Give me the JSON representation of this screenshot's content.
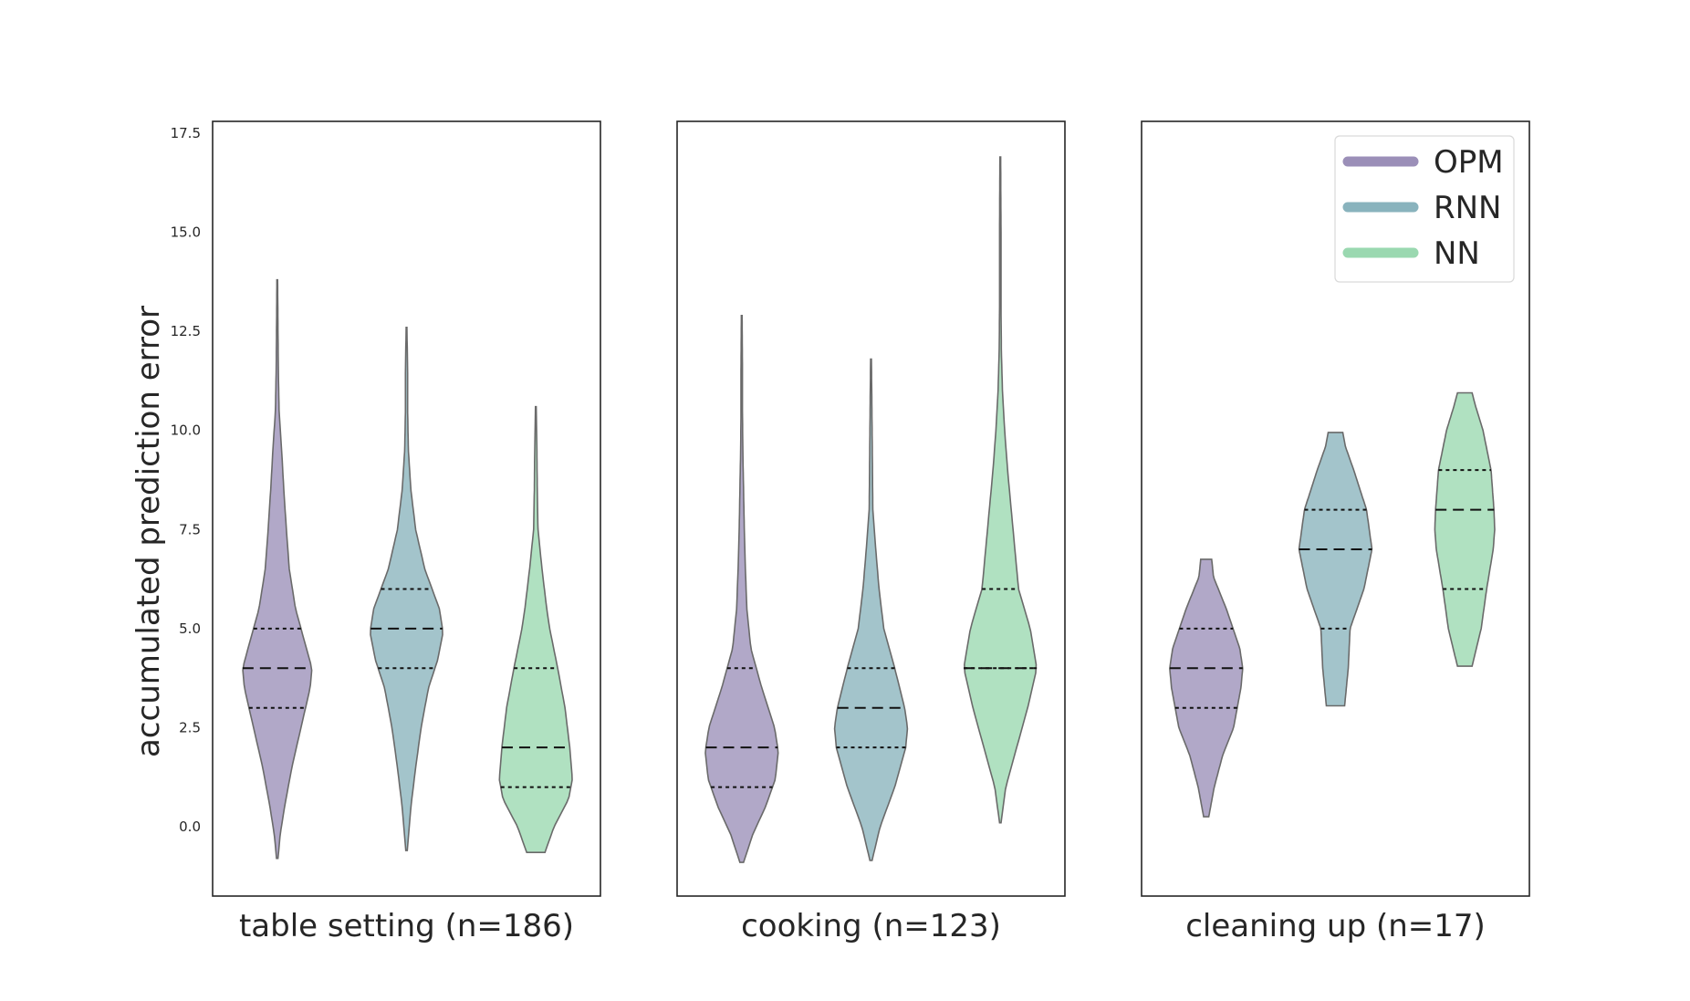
{
  "chart_data": {
    "type": "violin",
    "ylabel": "accumulated prediction error",
    "y_ticks": [
      0.0,
      2.5,
      5.0,
      7.5,
      10.0,
      12.5,
      15.0,
      17.5
    ],
    "y_tick_labels": [
      "0.0",
      "2.5",
      "5.0",
      "7.5",
      "10.0",
      "12.5",
      "15.0",
      "17.5"
    ],
    "ylim": [
      -1.75,
      17.8
    ],
    "shared_y": true,
    "legend_placement": "top-right of third panel",
    "series": [
      {
        "name": "OPM",
        "color": "#9b8fb8"
      },
      {
        "name": "RNN",
        "color": "#89b3bd"
      },
      {
        "name": "NN",
        "color": "#9ad8b0"
      }
    ],
    "panels": [
      {
        "title": "table setting (n=186)",
        "violins": [
          {
            "series": "OPM",
            "min": -0.8,
            "max": 13.8,
            "q1": 3.0,
            "median": 4.0,
            "q3": 5.0,
            "profile": [
              [
                -0.8,
                0.02
              ],
              [
                -0.2,
                0.08
              ],
              [
                0.5,
                0.2
              ],
              [
                1.5,
                0.4
              ],
              [
                2.5,
                0.65
              ],
              [
                3.5,
                0.9
              ],
              [
                4.0,
                0.95
              ],
              [
                4.5,
                0.8
              ],
              [
                5.5,
                0.5
              ],
              [
                6.5,
                0.33
              ],
              [
                7.5,
                0.25
              ],
              [
                8.5,
                0.18
              ],
              [
                9.5,
                0.12
              ],
              [
                10.5,
                0.05
              ],
              [
                11.5,
                0.03
              ],
              [
                12.5,
                0.02
              ],
              [
                13.8,
                0.01
              ]
            ]
          },
          {
            "series": "RNN",
            "min": -0.6,
            "max": 12.6,
            "q1": 4.0,
            "median": 5.0,
            "q3": 6.0,
            "profile": [
              [
                -0.6,
                0.02
              ],
              [
                0.5,
                0.12
              ],
              [
                1.5,
                0.25
              ],
              [
                2.5,
                0.4
              ],
              [
                3.5,
                0.6
              ],
              [
                4.2,
                0.85
              ],
              [
                4.9,
                1.0
              ],
              [
                5.5,
                0.9
              ],
              [
                6.0,
                0.7
              ],
              [
                6.5,
                0.5
              ],
              [
                7.5,
                0.25
              ],
              [
                8.5,
                0.12
              ],
              [
                9.5,
                0.05
              ],
              [
                10.5,
                0.03
              ],
              [
                11.5,
                0.03
              ],
              [
                12.6,
                0.01
              ]
            ]
          },
          {
            "series": "NN",
            "min": -0.65,
            "max": 10.6,
            "q1": 1.0,
            "median": 2.0,
            "q3": 4.0,
            "profile": [
              [
                -0.65,
                0.25
              ],
              [
                0.0,
                0.5
              ],
              [
                0.7,
                0.9
              ],
              [
                1.2,
                1.0
              ],
              [
                2.0,
                0.93
              ],
              [
                3.0,
                0.8
              ],
              [
                4.0,
                0.6
              ],
              [
                5.0,
                0.38
              ],
              [
                5.5,
                0.3
              ],
              [
                6.5,
                0.17
              ],
              [
                7.5,
                0.06
              ],
              [
                8.5,
                0.04
              ],
              [
                9.5,
                0.03
              ],
              [
                10.6,
                0.01
              ]
            ]
          }
        ]
      },
      {
        "title": "cooking (n=123)",
        "violins": [
          {
            "series": "OPM",
            "min": -0.9,
            "max": 12.9,
            "q1": 1.0,
            "median": 2.0,
            "q3": 4.0,
            "profile": [
              [
                -0.9,
                0.05
              ],
              [
                -0.2,
                0.3
              ],
              [
                0.5,
                0.65
              ],
              [
                1.2,
                0.92
              ],
              [
                1.9,
                1.0
              ],
              [
                2.5,
                0.9
              ],
              [
                3.5,
                0.55
              ],
              [
                4.5,
                0.25
              ],
              [
                5.5,
                0.14
              ],
              [
                6.5,
                0.1
              ],
              [
                7.5,
                0.07
              ],
              [
                8.5,
                0.05
              ],
              [
                9.5,
                0.03
              ],
              [
                10.5,
                0.02
              ],
              [
                11.5,
                0.02
              ],
              [
                12.9,
                0.01
              ]
            ]
          },
          {
            "series": "RNN",
            "min": -0.85,
            "max": 11.8,
            "q1": 2.0,
            "median": 3.0,
            "q3": 4.0,
            "profile": [
              [
                -0.85,
                0.03
              ],
              [
                0.0,
                0.25
              ],
              [
                1.0,
                0.65
              ],
              [
                2.0,
                0.95
              ],
              [
                2.5,
                1.0
              ],
              [
                3.0,
                0.92
              ],
              [
                4.0,
                0.65
              ],
              [
                5.0,
                0.35
              ],
              [
                6.0,
                0.22
              ],
              [
                7.0,
                0.13
              ],
              [
                8.0,
                0.05
              ],
              [
                9.0,
                0.04
              ],
              [
                10.0,
                0.03
              ],
              [
                11.0,
                0.02
              ],
              [
                11.8,
                0.01
              ]
            ]
          },
          {
            "series": "NN",
            "min": 0.1,
            "max": 16.9,
            "q1": 4.0,
            "median": 4.0,
            "q3": 6.0,
            "profile": [
              [
                0.1,
                0.02
              ],
              [
                1.0,
                0.15
              ],
              [
                2.0,
                0.45
              ],
              [
                3.0,
                0.75
              ],
              [
                4.0,
                1.0
              ],
              [
                5.0,
                0.82
              ],
              [
                6.0,
                0.5
              ],
              [
                7.0,
                0.4
              ],
              [
                8.0,
                0.3
              ],
              [
                9.0,
                0.2
              ],
              [
                10.0,
                0.12
              ],
              [
                11.0,
                0.06
              ],
              [
                12.0,
                0.03
              ],
              [
                13.0,
                0.02
              ],
              [
                15.0,
                0.02
              ],
              [
                16.9,
                0.01
              ]
            ]
          }
        ]
      },
      {
        "title": "cleaning up (n=17)",
        "violins": [
          {
            "series": "OPM",
            "min": 0.25,
            "max": 6.75,
            "q1": 3.0,
            "median": 4.0,
            "q3": 5.0,
            "profile": [
              [
                0.25,
                0.07
              ],
              [
                1.0,
                0.22
              ],
              [
                1.8,
                0.45
              ],
              [
                2.5,
                0.75
              ],
              [
                3.5,
                0.95
              ],
              [
                4.0,
                1.0
              ],
              [
                4.5,
                0.92
              ],
              [
                5.5,
                0.55
              ],
              [
                6.3,
                0.2
              ],
              [
                6.75,
                0.15
              ]
            ]
          },
          {
            "series": "RNN",
            "min": 3.05,
            "max": 9.95,
            "q1": 5.0,
            "median": 7.0,
            "q3": 8.0,
            "profile": [
              [
                3.05,
                0.25
              ],
              [
                4.0,
                0.35
              ],
              [
                5.0,
                0.4
              ],
              [
                6.0,
                0.78
              ],
              [
                7.0,
                1.0
              ],
              [
                8.0,
                0.85
              ],
              [
                9.0,
                0.5
              ],
              [
                9.6,
                0.27
              ],
              [
                9.95,
                0.2
              ]
            ]
          },
          {
            "series": "NN",
            "min": 4.05,
            "max": 10.95,
            "q1": 6.0,
            "median": 8.0,
            "q3": 9.0,
            "profile": [
              [
                4.05,
                0.2
              ],
              [
                5.0,
                0.45
              ],
              [
                6.0,
                0.6
              ],
              [
                7.0,
                0.78
              ],
              [
                7.5,
                0.82
              ],
              [
                8.0,
                0.8
              ],
              [
                9.0,
                0.72
              ],
              [
                10.0,
                0.5
              ],
              [
                10.6,
                0.3
              ],
              [
                10.95,
                0.2
              ]
            ]
          }
        ]
      }
    ]
  }
}
